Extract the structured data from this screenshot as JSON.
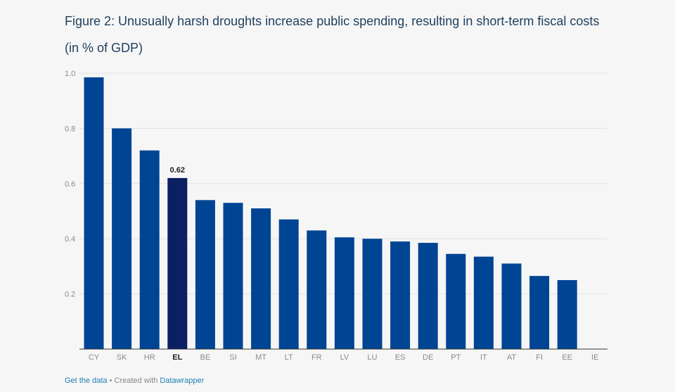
{
  "header": {
    "title": "Figure 2: Unusually harsh droughts increase public spending, resulting in short-term fiscal costs",
    "subtitle": "(in % of GDP)"
  },
  "footer": {
    "get_data": "Get the data",
    "separator": " • Created with ",
    "credit": "Datawrapper"
  },
  "colors": {
    "bar": "#004494",
    "highlight": "#0b1f63",
    "axis_tick": "#8a8a8a",
    "grid": "#e2e2e2",
    "baseline": "#333333",
    "highlight_label": "#222222"
  },
  "chart_data": {
    "type": "bar",
    "title": "Figure 2: Unusually harsh droughts increase public spending, resulting in short-term fiscal costs",
    "subtitle": "(in % of GDP)",
    "xlabel": "",
    "ylabel": "",
    "categories": [
      "CY",
      "SK",
      "HR",
      "EL",
      "BE",
      "SI",
      "MT",
      "LT",
      "FR",
      "LV",
      "LU",
      "ES",
      "DE",
      "PT",
      "IT",
      "AT",
      "FI",
      "EE",
      "IE"
    ],
    "values": [
      0.985,
      0.8,
      0.72,
      0.62,
      0.54,
      0.53,
      0.51,
      0.47,
      0.43,
      0.405,
      0.4,
      0.39,
      0.385,
      0.345,
      0.335,
      0.31,
      0.265,
      0.25,
      0
    ],
    "highlight": {
      "category": "EL",
      "label": "0.62"
    },
    "ylim": [
      0,
      1.0
    ],
    "yticks": [
      "0.2",
      "0.4",
      "0.6",
      "0.8",
      "1.0"
    ],
    "grid": true
  }
}
